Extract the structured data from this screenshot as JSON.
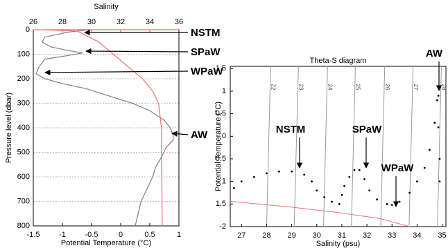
{
  "chart_data": [
    {
      "type": "profile",
      "x2_label": "Salinity",
      "xlabel": "Potential Temperature (°C)",
      "ylabel": "Pressure level (dbar)",
      "xlim": [
        -1.5,
        1
      ],
      "xticks": [
        -1.5,
        -1,
        -0.5,
        0,
        0.5,
        1
      ],
      "x2lim": [
        26,
        36
      ],
      "x2ticks": [
        26,
        28,
        30,
        32,
        34,
        36
      ],
      "x2_color": "#e8474a",
      "ylim": [
        0,
        800
      ],
      "yticks": [
        0,
        100,
        200,
        300,
        400,
        500,
        600,
        700,
        800
      ],
      "y_inverted": true,
      "grid": true,
      "series": [
        {
          "color": "#7f7f7f",
          "x": [
            -0.55,
            -0.9,
            -1.1,
            -1.3,
            -1.35,
            -1.2,
            -0.9,
            -0.65,
            -0.9,
            -1.3,
            -1.4,
            -1.45,
            -1.3,
            -1.0,
            -0.6,
            -0.2,
            0.2,
            0.5,
            0.75,
            0.85,
            0.9,
            0.9,
            0.78,
            0.7,
            0.6,
            0.55,
            0.45,
            0.35,
            0.3,
            0.25
          ],
          "y": [
            0,
            10,
            20,
            30,
            50,
            70,
            85,
            95,
            105,
            120,
            150,
            180,
            200,
            220,
            240,
            270,
            300,
            330,
            370,
            400,
            430,
            450,
            480,
            520,
            560,
            600,
            650,
            700,
            750,
            800
          ]
        },
        {
          "color": "#f07070",
          "axis": "x2",
          "x": [
            26.4,
            29.0,
            29.5,
            30.5,
            31.5,
            32.5,
            33.5,
            34.2,
            34.6,
            34.8,
            34.85
          ],
          "y": [
            0,
            5,
            20,
            50,
            100,
            150,
            200,
            250,
            300,
            400,
            800
          ]
        }
      ],
      "annotations": [
        "NSTM",
        "SPaW",
        "WPaW",
        "AW"
      ]
    },
    {
      "type": "scatter",
      "title": "Theta-S diagram",
      "xlabel": "Salinity (psu)",
      "ylabel": "Potential Temperature (°C)",
      "xlim": [
        26.55,
        35.15
      ],
      "xticks": [
        27,
        28,
        29,
        30,
        31,
        32,
        33,
        34,
        35
      ],
      "ylim": [
        -2,
        1.55
      ],
      "yticks": [
        -2,
        {
          "value": -1.5,
          "label": "1.5"
        },
        {
          "value": -1,
          "label": "1"
        },
        {
          "value": -0.5,
          "label": "0.5"
        },
        0,
        0.5,
        1,
        1.5
      ],
      "series": [
        {
          "color": "#000000",
          "style": "points",
          "x": [
            26.7,
            27,
            27.5,
            28,
            28.5,
            29,
            29.5,
            29.8,
            30,
            30.3,
            30.6,
            30.9,
            31,
            31.1,
            31.3,
            31.5,
            31.7,
            31.9,
            32.1,
            32.4,
            32.8,
            33,
            33.3,
            33.7,
            34,
            34.3,
            34.5,
            34.7,
            34.8,
            34.85,
            34.85,
            34.9,
            34.9
          ],
          "values": [
            -1.15,
            -1.0,
            -0.9,
            -0.82,
            -0.78,
            -0.78,
            -0.85,
            -1.0,
            -1.2,
            -1.35,
            -1.45,
            -1.5,
            -1.3,
            -1.1,
            -0.9,
            -0.75,
            -0.75,
            -0.95,
            -1.2,
            -1.4,
            -1.5,
            -1.52,
            -1.45,
            -1.25,
            -1.0,
            -0.7,
            -0.3,
            0.3,
            0.8,
            0.9,
            0.2,
            -0.5,
            -1.0
          ]
        },
        {
          "color": "#f07070",
          "style": "line",
          "x": [
            26.55,
            29,
            31,
            32.5,
            33.7
          ],
          "values": [
            -1.44,
            -1.57,
            -1.7,
            -1.82,
            -2.0
          ]
        }
      ],
      "isopycnal_color": "#999999",
      "isopycnals": [
        {
          "label": "22",
          "x": [
            28.0,
            28.16
          ]
        },
        {
          "label": "23",
          "x": [
            29.1,
            29.27
          ]
        },
        {
          "label": "24",
          "x": [
            30.27,
            30.43
          ]
        },
        {
          "label": "25",
          "x": [
            31.38,
            31.54
          ]
        },
        {
          "label": "26",
          "x": [
            32.55,
            32.71
          ]
        },
        {
          "label": "27",
          "x": [
            33.68,
            33.84
          ]
        },
        {
          "label": "28",
          "x": [
            34.81,
            34.97
          ]
        }
      ],
      "annotations": [
        "NSTM",
        "SPaW",
        "WPaW",
        "AW"
      ]
    }
  ]
}
